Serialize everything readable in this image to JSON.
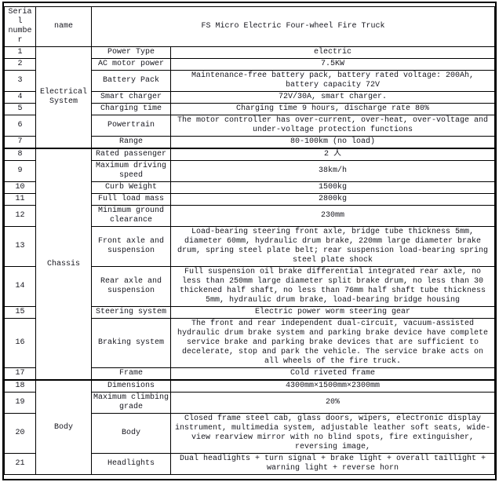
{
  "table": {
    "headers": {
      "serial": "Serial number",
      "name": "name",
      "product": "FS Micro Electric Four-wheel Fire Truck"
    },
    "sections": [
      {
        "label": "Electrical System",
        "rows": [
          {
            "serial": "1",
            "attribute": "Power Type",
            "value": "electric"
          },
          {
            "serial": "2",
            "attribute": "AC motor power",
            "value": "7.5KW"
          },
          {
            "serial": "3",
            "attribute": "Battery Pack",
            "value": "Maintenance-free battery pack, battery rated voltage: 200Ah, battery capacity 72V"
          },
          {
            "serial": "4",
            "attribute": "Smart charger",
            "value": "72V/30A, smart charger."
          },
          {
            "serial": "5",
            "attribute": "Charging time",
            "value": "Charging time 9 hours, discharge rate 80%"
          },
          {
            "serial": "6",
            "attribute": "Powertrain",
            "value": "The motor controller has over-current, over-heat, over-voltage and under-voltage protection functions"
          },
          {
            "serial": "7",
            "attribute": "Range",
            "value": "80-100km (no load)"
          }
        ]
      },
      {
        "label": "Chassis",
        "rows": [
          {
            "serial": "8",
            "attribute": "Rated passenger",
            "value": "2 人"
          },
          {
            "serial": "9",
            "attribute": "Maximum driving speed",
            "value": "38km/h"
          },
          {
            "serial": "10",
            "attribute": "Curb Weight",
            "value": "1500kg"
          },
          {
            "serial": "11",
            "attribute": "Full load mass",
            "value": "2800kg"
          },
          {
            "serial": "12",
            "attribute": "Minimum ground clearance",
            "value": "230mm"
          },
          {
            "serial": "13",
            "attribute": "Front axle and suspension",
            "value": "Load-bearing steering front axle, bridge tube thickness 5mm, diameter 60mm, hydraulic drum brake, 220mm large diameter brake drum, spring steel plate belt; rear suspension load-bearing spring steel plate shock"
          },
          {
            "serial": "14",
            "attribute": "Rear axle and suspension",
            "value": "Full suspension oil brake differential integrated rear axle, no less than 250mm large diameter split brake drum, no less than 30 thickened half shaft, no less than 76mm half shaft tube thickness 5mm, hydraulic drum brake, load-bearing bridge housing"
          },
          {
            "serial": "15",
            "attribute": "Steering system",
            "value": "Electric power worm steering gear"
          },
          {
            "serial": "16",
            "attribute": "Braking system",
            "value": "The front and rear independent dual-circuit, vacuum-assisted hydraulic drum brake system and parking brake device have complete service brake and parking brake devices that are sufficient to decelerate, stop and park the vehicle. The service brake acts on all wheels of the fire truck."
          },
          {
            "serial": "17",
            "attribute": "Frame",
            "value": "Cold riveted frame"
          }
        ]
      },
      {
        "label": "Body",
        "rows": [
          {
            "serial": "18",
            "attribute": "Dimensions",
            "value": "4300mm×1500mm×2300mm"
          },
          {
            "serial": "19",
            "attribute": "Maximum climbing grade",
            "value": "20%"
          },
          {
            "serial": "20",
            "attribute": "Body",
            "value": "Closed frame steel cab, glass doors, wipers, electronic display instrument, multimedia system, adjustable leather soft seats, wide-view rearview mirror with no blind spots, fire extinguisher, reversing image,"
          },
          {
            "serial": "21",
            "attribute": "Headlights",
            "value": "Dual headlights + turn signal + brake light + overall taillight + warning light + reverse horn"
          }
        ]
      }
    ]
  }
}
